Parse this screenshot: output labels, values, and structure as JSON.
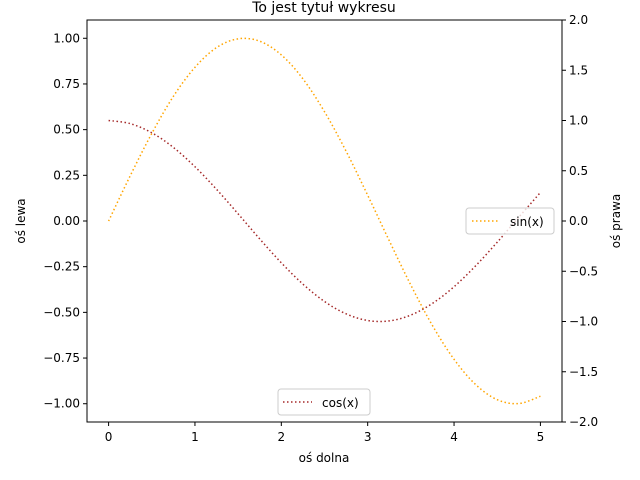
{
  "chart_data": {
    "type": "line",
    "title": "To jest tytuł wykresu",
    "xlabel": "oś dolna",
    "ylabel_left": "oś lewa",
    "ylabel_right": "oś prawa",
    "xlim": [
      -0.25,
      5.25
    ],
    "ylim_left": [
      -1.1,
      1.1
    ],
    "ylim_right": [
      -2.0,
      2.0
    ],
    "x_ticks": [
      0,
      1,
      2,
      3,
      4,
      5
    ],
    "y_left_ticks": [
      1.0,
      0.75,
      0.5,
      0.25,
      0.0,
      -0.25,
      -0.5,
      -0.75,
      -1.0
    ],
    "y_left_tick_labels": [
      "1.00",
      "0.75",
      "0.50",
      "0.25",
      "0.00",
      "−0.25",
      "−0.50",
      "−0.75",
      "−1.00"
    ],
    "y_right_ticks": [
      2.0,
      1.5,
      1.0,
      0.5,
      0.0,
      -0.5,
      -1.0,
      -1.5,
      -2.0
    ],
    "y_right_tick_labels": [
      "2.0",
      "1.5",
      "1.0",
      "0.5",
      "0.0",
      "−0.5",
      "−1.0",
      "−1.5",
      "−2.0"
    ],
    "grid": false,
    "colors": {
      "sin": "#ffa500",
      "cos": "#a52a2a",
      "ylabel_left": "#008000",
      "ylabel_right": "#ff0000"
    },
    "series": [
      {
        "name": "sin(x)",
        "axis": "left",
        "style": "dotted",
        "x": [
          0.0,
          0.25,
          0.5,
          0.75,
          1.0,
          1.25,
          1.5,
          1.75,
          2.0,
          2.25,
          2.5,
          2.75,
          3.0,
          3.25,
          3.5,
          3.75,
          4.0,
          4.25,
          4.5,
          4.75,
          5.0
        ],
        "values": [
          0.0,
          0.247,
          0.479,
          0.682,
          0.841,
          0.949,
          0.997,
          0.984,
          0.909,
          0.778,
          0.598,
          0.382,
          0.141,
          -0.108,
          -0.351,
          -0.572,
          -0.757,
          -0.895,
          -0.978,
          -0.999,
          -0.959
        ]
      },
      {
        "name": "cos(x)",
        "axis": "right",
        "style": "dotted",
        "x": [
          0.0,
          0.25,
          0.5,
          0.75,
          1.0,
          1.25,
          1.5,
          1.75,
          2.0,
          2.25,
          2.5,
          2.75,
          3.0,
          3.25,
          3.5,
          3.75,
          4.0,
          4.25,
          4.5,
          4.75,
          5.0
        ],
        "values": [
          1.0,
          0.969,
          0.878,
          0.732,
          0.54,
          0.315,
          0.071,
          -0.178,
          -0.416,
          -0.628,
          -0.801,
          -0.924,
          -0.99,
          -0.994,
          -0.936,
          -0.82,
          -0.654,
          -0.446,
          -0.211,
          0.038,
          0.284
        ]
      }
    ],
    "legends": [
      {
        "series": "sin(x)",
        "placement": "center-right"
      },
      {
        "series": "cos(x)",
        "placement": "lower-center"
      }
    ]
  }
}
